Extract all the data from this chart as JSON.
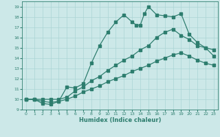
{
  "xlabel": "Humidex (Indice chaleur)",
  "xlim": [
    -0.5,
    23.5
  ],
  "ylim": [
    9,
    19.5
  ],
  "xticks": [
    0,
    1,
    2,
    3,
    4,
    5,
    6,
    7,
    8,
    9,
    10,
    11,
    12,
    13,
    14,
    15,
    16,
    17,
    18,
    19,
    20,
    21,
    22,
    23
  ],
  "yticks": [
    9,
    10,
    11,
    12,
    13,
    14,
    15,
    16,
    17,
    18,
    19
  ],
  "bg_color": "#cce8e8",
  "line_color": "#2d7d6e",
  "grid_color": "#aad4d4",
  "line1_x": [
    0,
    1,
    2,
    3,
    4,
    5,
    6,
    7,
    8,
    9,
    10,
    11,
    12,
    13,
    13.5,
    14,
    14.5,
    15,
    16,
    17,
    18,
    19,
    20,
    21,
    22,
    23
  ],
  "line1_y": [
    10,
    10,
    9.6,
    9.5,
    9.8,
    11.2,
    11.1,
    11.5,
    13.5,
    15.2,
    16.5,
    17.5,
    18.2,
    17.5,
    17.2,
    17.2,
    18.3,
    19.0,
    18.2,
    18.1,
    18.0,
    18.3,
    16.3,
    15.5,
    15.0,
    14.8
  ],
  "line2_x": [
    0,
    1,
    2,
    3,
    4,
    5,
    6,
    7,
    8,
    9,
    10,
    11,
    12,
    13,
    14,
    15,
    16,
    17,
    18,
    19,
    20,
    21,
    22,
    23
  ],
  "line2_y": [
    10,
    10,
    10,
    10,
    10,
    10.2,
    10.8,
    11.2,
    11.8,
    12.2,
    12.8,
    13.3,
    13.8,
    14.2,
    14.8,
    15.2,
    16.0,
    16.5,
    16.8,
    16.2,
    15.8,
    15.2,
    15.0,
    14.2
  ],
  "line3_x": [
    0,
    1,
    2,
    3,
    4,
    5,
    6,
    7,
    8,
    9,
    10,
    11,
    12,
    13,
    14,
    15,
    16,
    17,
    18,
    19,
    20,
    21,
    22,
    23
  ],
  "line3_y": [
    10,
    10,
    9.8,
    9.7,
    9.8,
    10.0,
    10.3,
    10.7,
    11.0,
    11.3,
    11.7,
    12.0,
    12.3,
    12.7,
    13.0,
    13.3,
    13.7,
    14.0,
    14.3,
    14.5,
    14.2,
    13.8,
    13.5,
    13.3
  ]
}
